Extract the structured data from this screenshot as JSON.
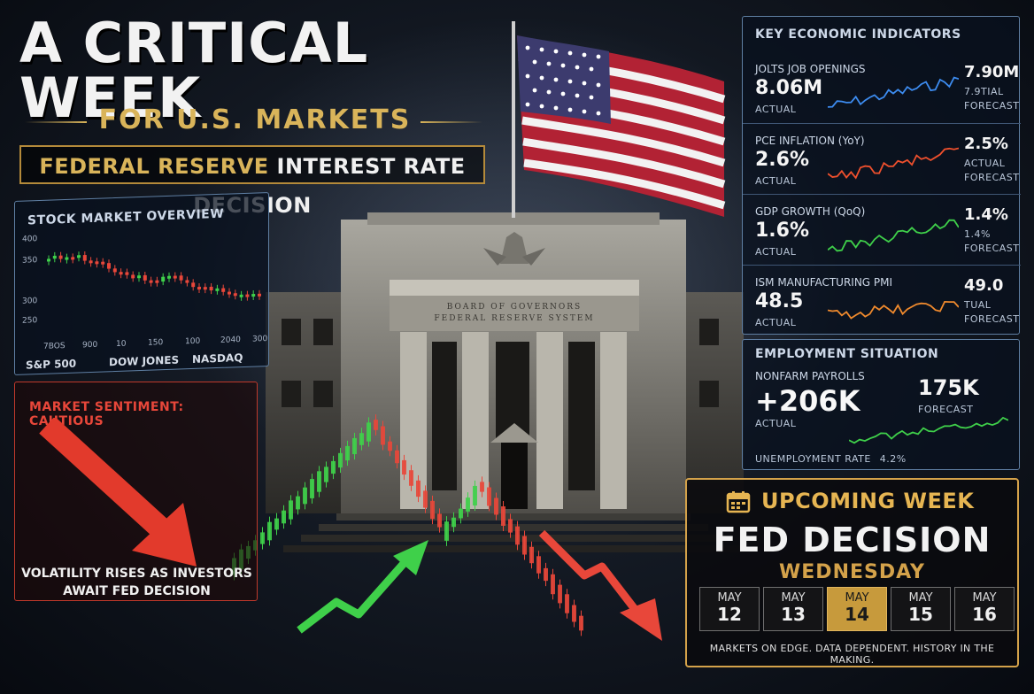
{
  "header": {
    "title": "A CRITICAL WEEK",
    "subtitle": "FOR U.S. MARKETS",
    "banner_gold": "FEDERAL RESERVE",
    "banner_white": "INTEREST RATE DECISION"
  },
  "building": {
    "inscription_1": "BOARD OF GOVERNORS",
    "inscription_2": "FEDERAL RESERVE SYSTEM"
  },
  "stock_overview": {
    "title": "STOCK MARKET OVERVIEW",
    "y_ticks": [
      "400",
      "350",
      "300",
      "250"
    ],
    "x_ticks": [
      "7BOS",
      "900",
      "10",
      "150",
      "100",
      "2040",
      "300"
    ],
    "indices": [
      "S&P 500",
      "DOW JONES",
      "NASDAQ"
    ]
  },
  "sentiment": {
    "title": "MARKET SENTIMENT: CAUTIOUS",
    "line1": "VOLATILITY RISES AS INVESTORS",
    "line2": "AWAIT FED DECISION"
  },
  "indicators": {
    "title": "KEY ECONOMIC INDICATORS",
    "rows": [
      {
        "name": "JOLTS JOB OPENINGS",
        "actual": "8.06M",
        "actual_label": "ACTUAL",
        "forecast": "7.90M",
        "forecast_label_1": "7.9TIAL",
        "forecast_label_2": "FORECAST",
        "color": "#3d8cf0"
      },
      {
        "name": "PCE INFLATION (YoY)",
        "actual": "2.6%",
        "actual_label": "ACTUAL",
        "forecast": "2.5%",
        "forecast_label_1": "ACTUAL",
        "forecast_label_2": "FORECAST",
        "color": "#f0502d"
      },
      {
        "name": "GDP GROWTH (QoQ)",
        "actual": "1.6%",
        "actual_label": "ACTUAL",
        "forecast": "1.4%",
        "forecast_label_1": "1.4%",
        "forecast_label_2": "FORECAST",
        "color": "#3fd04a"
      },
      {
        "name": "ISM MANUFACTURING PMI",
        "actual": "48.5",
        "actual_label": "ACTUAL",
        "forecast": "49.0",
        "forecast_label_1": "TUAL",
        "forecast_label_2": "FORECAST",
        "color": "#f08a2d"
      }
    ]
  },
  "employment": {
    "title": "EMPLOYMENT SITUATION",
    "label": "NONFARM PAYROLLS",
    "actual": "+206K",
    "actual_label": "ACTUAL",
    "forecast": "175K",
    "forecast_label": "FORECAST",
    "unemployment_label": "UNEMPLOYMENT RATE",
    "unemployment_value": "4.2%"
  },
  "upcoming": {
    "title": "UPCOMING WEEK",
    "event": "FED DECISION",
    "weekday": "WEDNESDAY",
    "days": [
      {
        "month": "MAY",
        "day": "12"
      },
      {
        "month": "MAY",
        "day": "13"
      },
      {
        "month": "MAY",
        "day": "14"
      },
      {
        "month": "MAY",
        "day": "15"
      },
      {
        "month": "MAY",
        "day": "16"
      }
    ],
    "active_index": 2,
    "note": "MARKETS ON EDGE. DATA DEPENDENT. HISTORY IN THE MAKING."
  },
  "colors": {
    "gold": "#d9b45a",
    "up": "#3fd04a",
    "down": "#e8473a",
    "panel_border": "#5f7fa3"
  },
  "icons": [
    "calendar-icon",
    "flag-icon",
    "eagle-icon",
    "down-arrow-icon",
    "up-arrow-icon"
  ]
}
